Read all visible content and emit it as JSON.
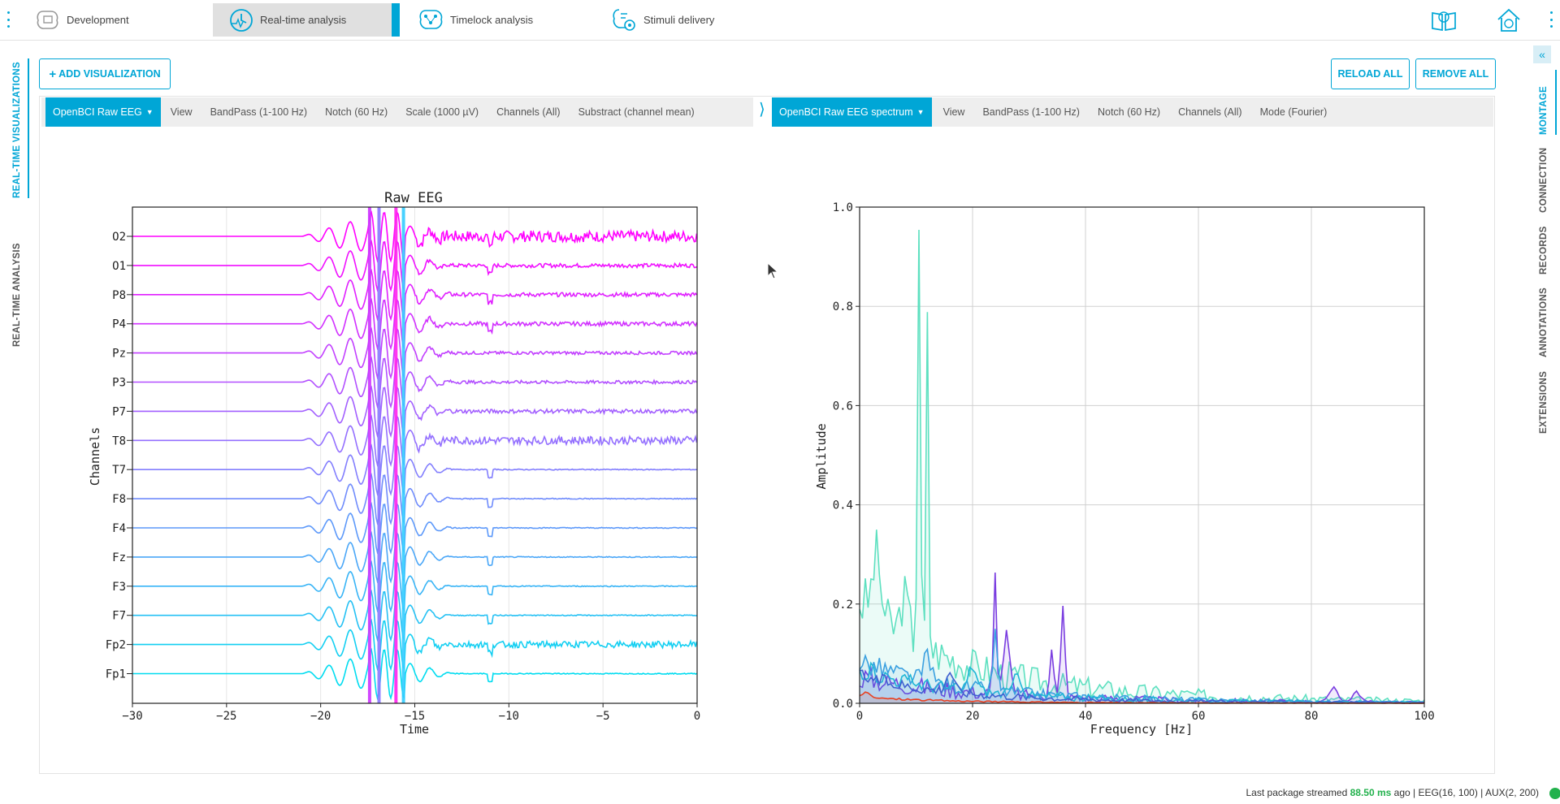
{
  "topbar": {
    "tabs": [
      {
        "label": "Development"
      },
      {
        "label": "Real-time analysis"
      },
      {
        "label": "Timelock analysis"
      },
      {
        "label": "Stimuli delivery"
      }
    ],
    "accent": "#00a6d6"
  },
  "left_sidebar": {
    "tabs": [
      {
        "label": "REAL-TIME VISUALIZATIONS"
      },
      {
        "label": "REAL-TIME ANALYSIS"
      }
    ]
  },
  "right_sidebar": {
    "tabs": [
      {
        "label": "MONTAGE"
      },
      {
        "label": "CONNECTION"
      },
      {
        "label": "RECORDS"
      },
      {
        "label": "ANNOTATIONS"
      },
      {
        "label": "EXTENSIONS"
      }
    ]
  },
  "toolbar": {
    "add_label": "ADD VISUALIZATION",
    "reload_label": "RELOAD ALL",
    "remove_label": "REMOVE ALL"
  },
  "viz_left": {
    "selector": "OpenBCI Raw EEG",
    "items": [
      "View",
      "BandPass (1-100 Hz)",
      "Notch (60 Hz)",
      "Scale (1000 µV)",
      "Channels (All)",
      "Substract (channel mean)"
    ]
  },
  "viz_right": {
    "selector": "OpenBCI Raw EEG spectrum",
    "items": [
      "View",
      "BandPass (1-100 Hz)",
      "Notch (60 Hz)",
      "Channels (All)",
      "Mode (Fourier)"
    ]
  },
  "status": {
    "prefix": "Last package streamed",
    "latency": "88.50 ms",
    "suffix": "ago | EEG(16, 100) | AUX(2, 200)"
  },
  "chart_data": [
    {
      "type": "line",
      "title": "Raw EEG",
      "xlabel": "Time",
      "ylabel": "Channels",
      "xlim": [
        -30,
        0
      ],
      "xticks": [
        "−30",
        "−25",
        "−20",
        "−15",
        "−10",
        "−5",
        "0"
      ],
      "channels": [
        "O2",
        "O1",
        "P8",
        "P4",
        "Pz",
        "P3",
        "P7",
        "T8",
        "T7",
        "F8",
        "F4",
        "Fz",
        "F3",
        "F7",
        "Fp2",
        "Fp1"
      ],
      "grid": true
    },
    {
      "type": "line",
      "title": "",
      "xlabel": "Frequency [Hz]",
      "ylabel": "Amplitude",
      "xlim": [
        0,
        100
      ],
      "ylim": [
        0,
        1
      ],
      "xticks": [
        "0",
        "20",
        "40",
        "60",
        "80",
        "100"
      ],
      "yticks": [
        "0.0",
        "0.2",
        "0.4",
        "0.6",
        "0.8",
        "1.0"
      ],
      "grid": true,
      "peaks": [
        {
          "series": "teal",
          "x": 10.5,
          "y": 1.0
        },
        {
          "series": "teal",
          "x": 12,
          "y": 0.86
        },
        {
          "series": "purple",
          "x": 24,
          "y": 0.28
        },
        {
          "series": "purple",
          "x": 36,
          "y": 0.21
        }
      ]
    }
  ]
}
